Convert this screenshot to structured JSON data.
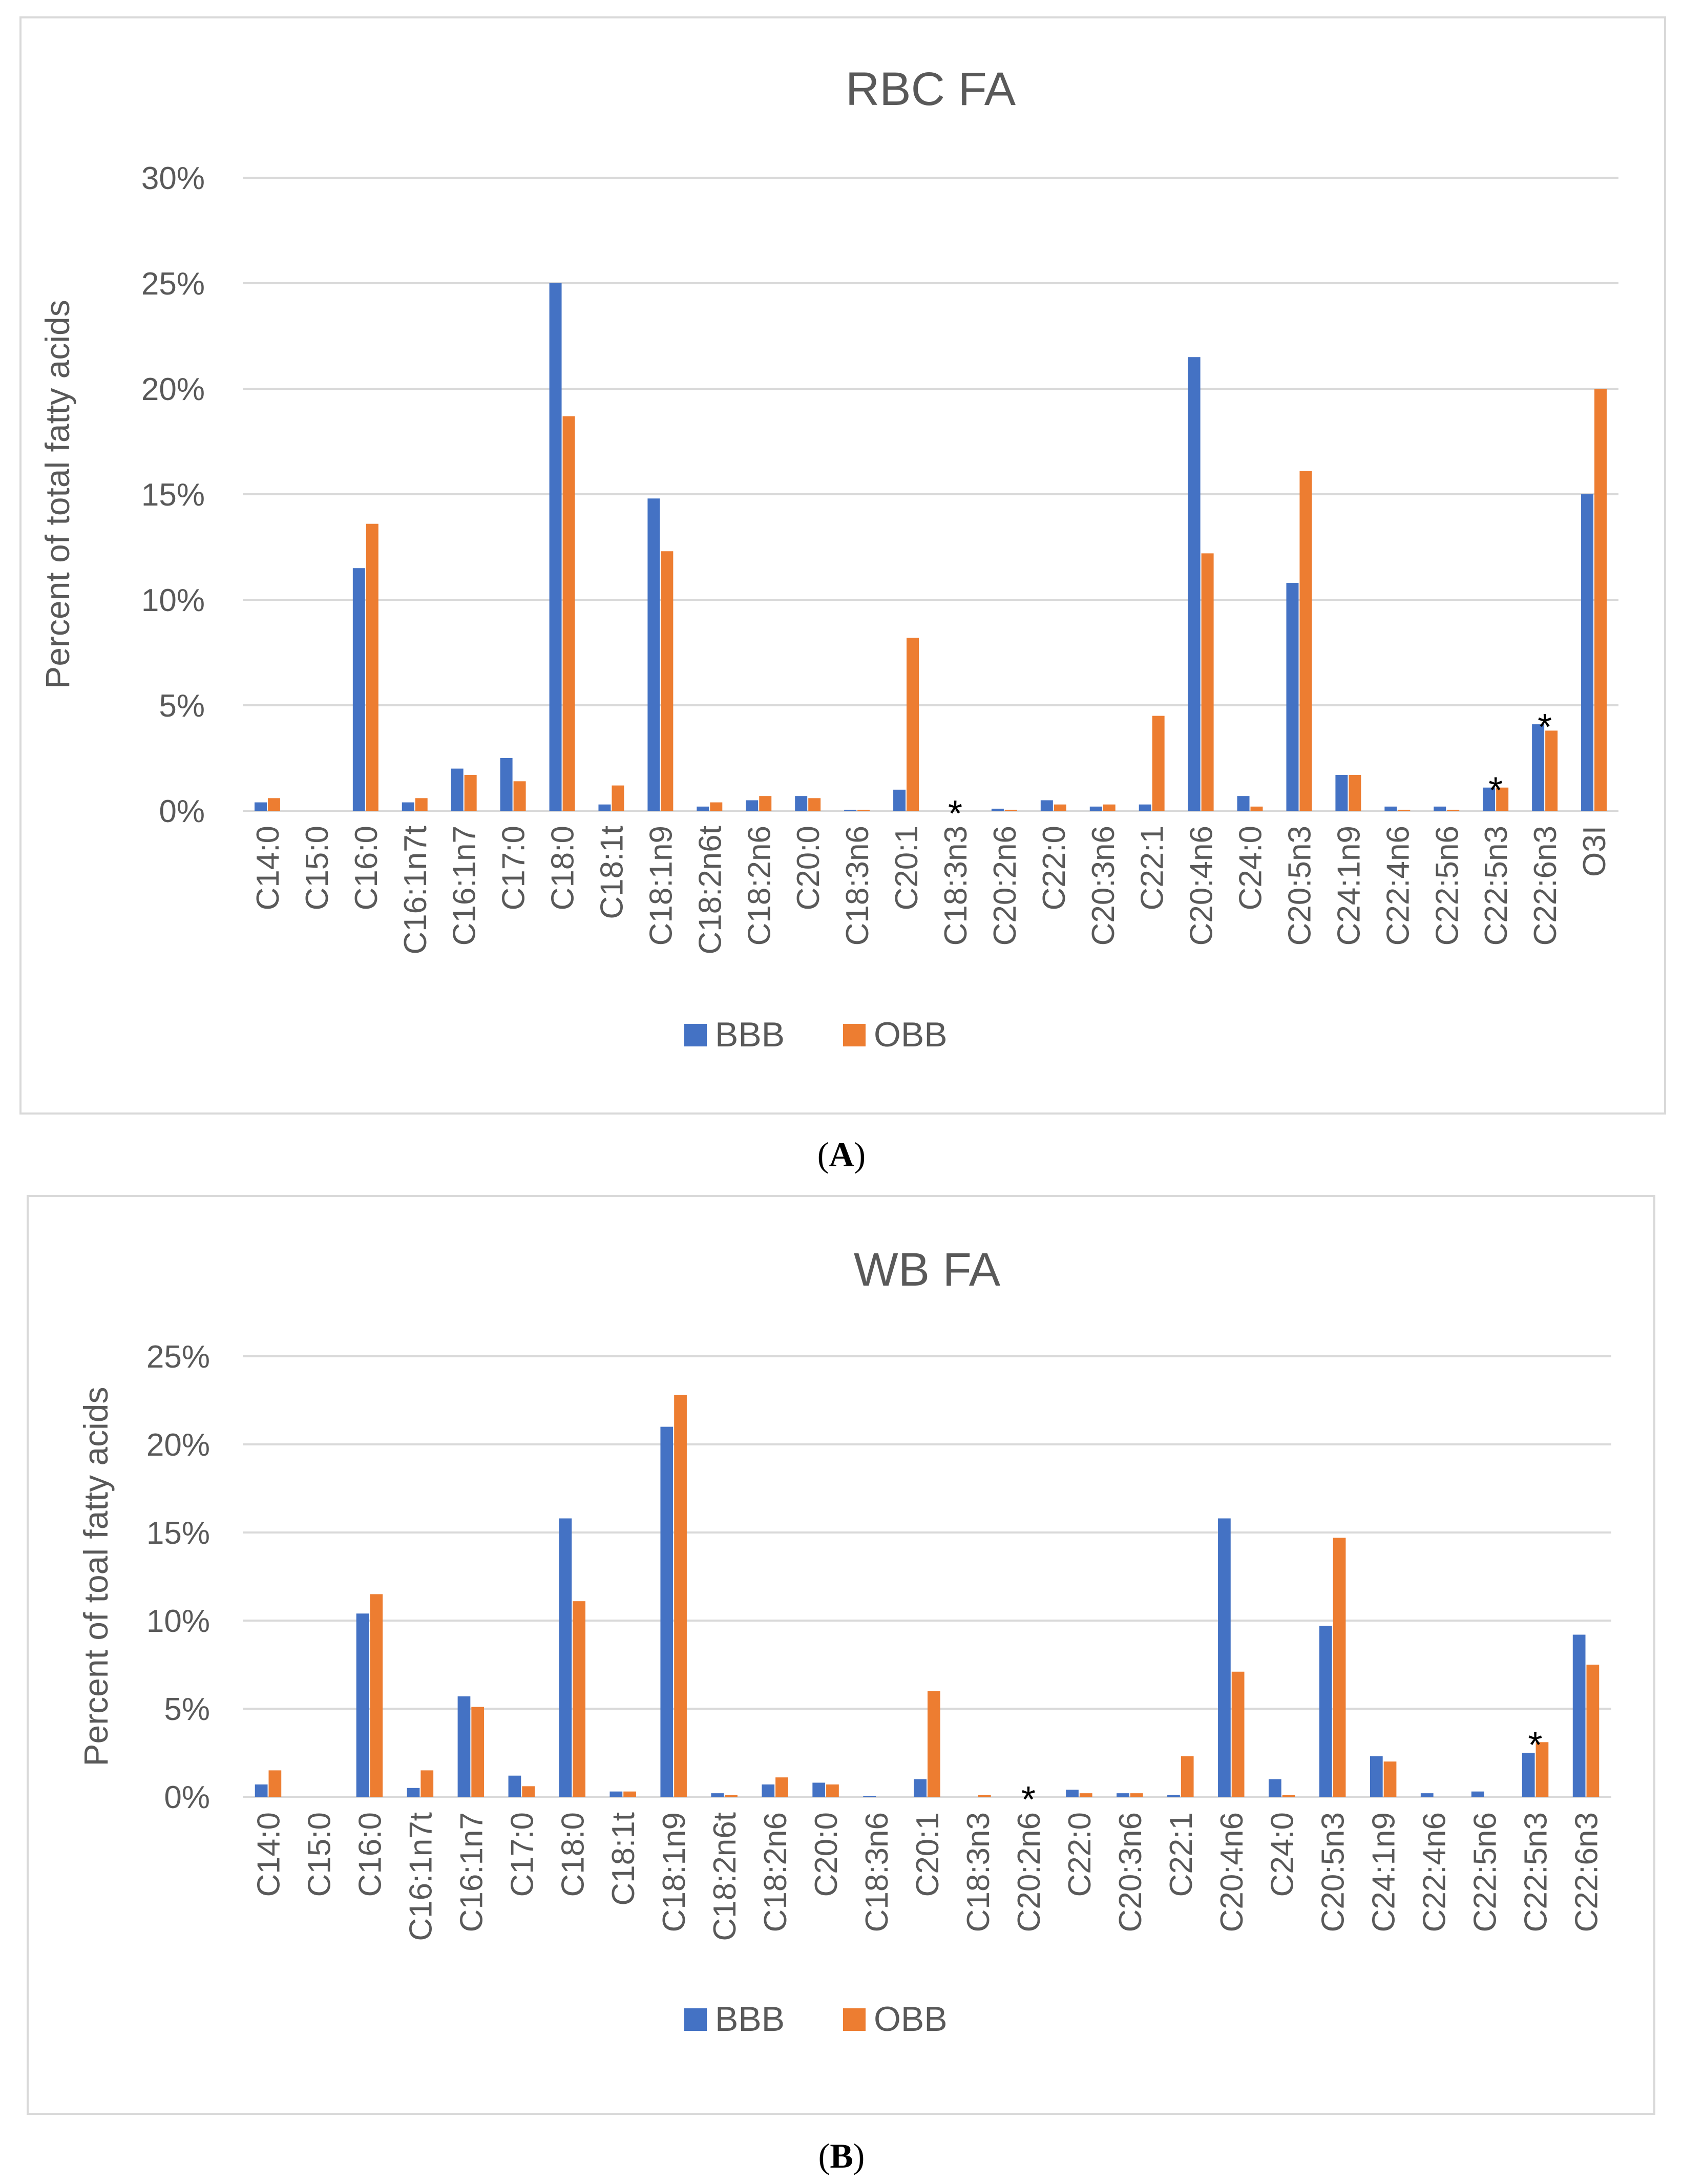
{
  "panels": [
    {
      "id": "A",
      "panel_label": "A",
      "chart_data": {
        "type": "bar",
        "title": "RBC FA",
        "xlabel": "",
        "ylabel": "Percent of total fatty acids",
        "ylim": [
          0,
          30
        ],
        "yticks": [
          0,
          5,
          10,
          15,
          20,
          25,
          30
        ],
        "ytick_labels": [
          "0%",
          "5%",
          "10%",
          "15%",
          "20%",
          "25%",
          "30%"
        ],
        "grid": true,
        "legend_position": "bottom-center",
        "categories": [
          "C14:0",
          "C15:0",
          "C16:0",
          "C16:1n7t",
          "C16:1n7",
          "C17:0",
          "C18:0",
          "C18:1t",
          "C18:1n9",
          "C18:2n6t",
          "C18:2n6",
          "C20:0",
          "C18:3n6",
          "C20:1",
          "C18:3n3",
          "C20:2n6",
          "C22:0",
          "C20:3n6",
          "C22:1",
          "C20:4n6",
          "C24:0",
          "C20:5n3",
          "C24:1n9",
          "C22:4n6",
          "C22:5n6",
          "C22:5n3",
          "C22:6n3",
          "O3I"
        ],
        "series": [
          {
            "name": "BBB",
            "color": "#4472c4",
            "values": [
              0.4,
              0.0,
              11.5,
              0.4,
              2.0,
              2.5,
              25.0,
              0.3,
              14.8,
              0.2,
              0.5,
              0.7,
              0.05,
              1.0,
              0.0,
              0.1,
              0.5,
              0.2,
              0.3,
              21.5,
              0.7,
              10.8,
              1.7,
              0.2,
              0.2,
              1.1,
              4.1,
              15.0
            ]
          },
          {
            "name": "OBB",
            "color": "#ed7d31",
            "values": [
              0.6,
              0.0,
              13.6,
              0.6,
              1.7,
              1.4,
              18.7,
              1.2,
              12.3,
              0.4,
              0.7,
              0.6,
              0.05,
              8.2,
              0.0,
              0.05,
              0.3,
              0.3,
              4.5,
              12.2,
              0.2,
              16.1,
              1.7,
              0.05,
              0.05,
              1.1,
              3.8,
              20.0
            ]
          }
        ],
        "annotations": [
          {
            "text": "*",
            "category": "C18:3n3",
            "value": 0.0
          },
          {
            "text": "*",
            "category": "C22:5n3",
            "value": 1.1
          },
          {
            "text": "*",
            "category": "C22:6n3",
            "value": 4.1
          }
        ]
      }
    },
    {
      "id": "B",
      "panel_label": "B",
      "chart_data": {
        "type": "bar",
        "title": "WB FA",
        "xlabel": "",
        "ylabel": "Percent of toal fatty acids",
        "ylim": [
          0,
          25
        ],
        "yticks": [
          0,
          5,
          10,
          15,
          20,
          25
        ],
        "ytick_labels": [
          "0%",
          "5%",
          "10%",
          "15%",
          "20%",
          "25%"
        ],
        "grid": true,
        "legend_position": "bottom-center",
        "categories": [
          "C14:0",
          "C15:0",
          "C16:0",
          "C16:1n7t",
          "C16:1n7",
          "C17:0",
          "C18:0",
          "C18:1t",
          "C18:1n9",
          "C18:2n6t",
          "C18:2n6",
          "C20:0",
          "C18:3n6",
          "C20:1",
          "C18:3n3",
          "C20:2n6",
          "C22:0",
          "C20:3n6",
          "C22:1",
          "C20:4n6",
          "C24:0",
          "C20:5n3",
          "C24:1n9",
          "C22:4n6",
          "C22:5n6",
          "C22:5n3",
          "C22:6n3"
        ],
        "series": [
          {
            "name": "BBB",
            "color": "#4472c4",
            "values": [
              0.7,
              0.0,
              10.4,
              0.5,
              5.7,
              1.2,
              15.8,
              0.3,
              21.0,
              0.2,
              0.7,
              0.8,
              0.05,
              1.0,
              0.0,
              0.0,
              0.4,
              0.2,
              0.1,
              15.8,
              1.0,
              9.7,
              2.3,
              0.2,
              0.3,
              2.5,
              9.2
            ]
          },
          {
            "name": "OBB",
            "color": "#ed7d31",
            "values": [
              1.5,
              0.0,
              11.5,
              1.5,
              5.1,
              0.6,
              11.1,
              0.3,
              22.8,
              0.1,
              1.1,
              0.7,
              0.0,
              6.0,
              0.1,
              0.0,
              0.2,
              0.2,
              2.3,
              7.1,
              0.1,
              14.7,
              2.0,
              0.0,
              0.0,
              3.1,
              7.5
            ]
          }
        ],
        "annotations": [
          {
            "text": "*",
            "category": "C20:2n6",
            "value": 0.0
          },
          {
            "text": "*",
            "category": "C22:5n3",
            "value": 3.1
          }
        ]
      }
    }
  ]
}
